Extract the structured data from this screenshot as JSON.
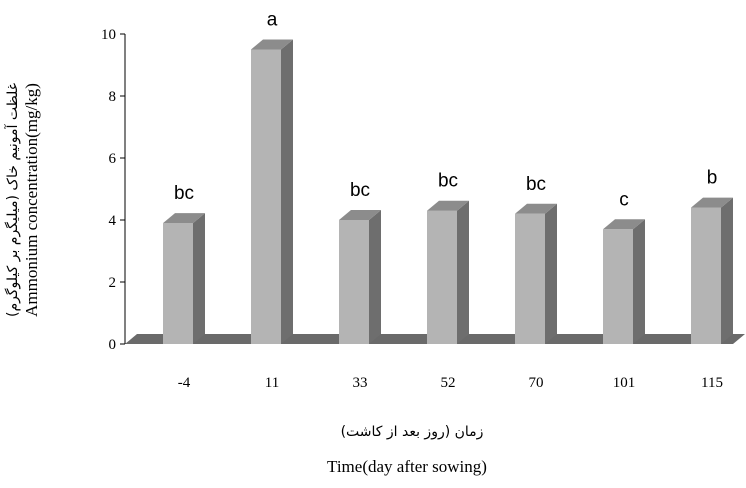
{
  "chart_data": {
    "type": "bar",
    "categories": [
      "-4",
      "11",
      "33",
      "52",
      "70",
      "101",
      "115"
    ],
    "values": [
      3.9,
      9.5,
      4.0,
      4.3,
      4.2,
      3.7,
      4.4
    ],
    "significance_letters": [
      "bc",
      "a",
      "bc",
      "bc",
      "bc",
      "c",
      "b"
    ],
    "ylabel": "Ammonium concentration(mg/kg)",
    "ylabel_fa": "غلظت آمونیم خاک (میلیگرم بر کیلوگرم)",
    "xlabel": "Time(day after sowing)",
    "xlabel_fa": "زمان (روز بعد از کاشت)",
    "ylim": [
      0,
      10
    ],
    "yticks": [
      "0",
      "2",
      "4",
      "6",
      "8",
      "10"
    ],
    "grid": false,
    "legend": "none",
    "colors": {
      "bar_front": "#b4b4b4",
      "bar_side": "#6e6e6e",
      "bar_top": "#8c8c8c",
      "floor": "#6a6a6a",
      "axis": "#000000"
    }
  }
}
